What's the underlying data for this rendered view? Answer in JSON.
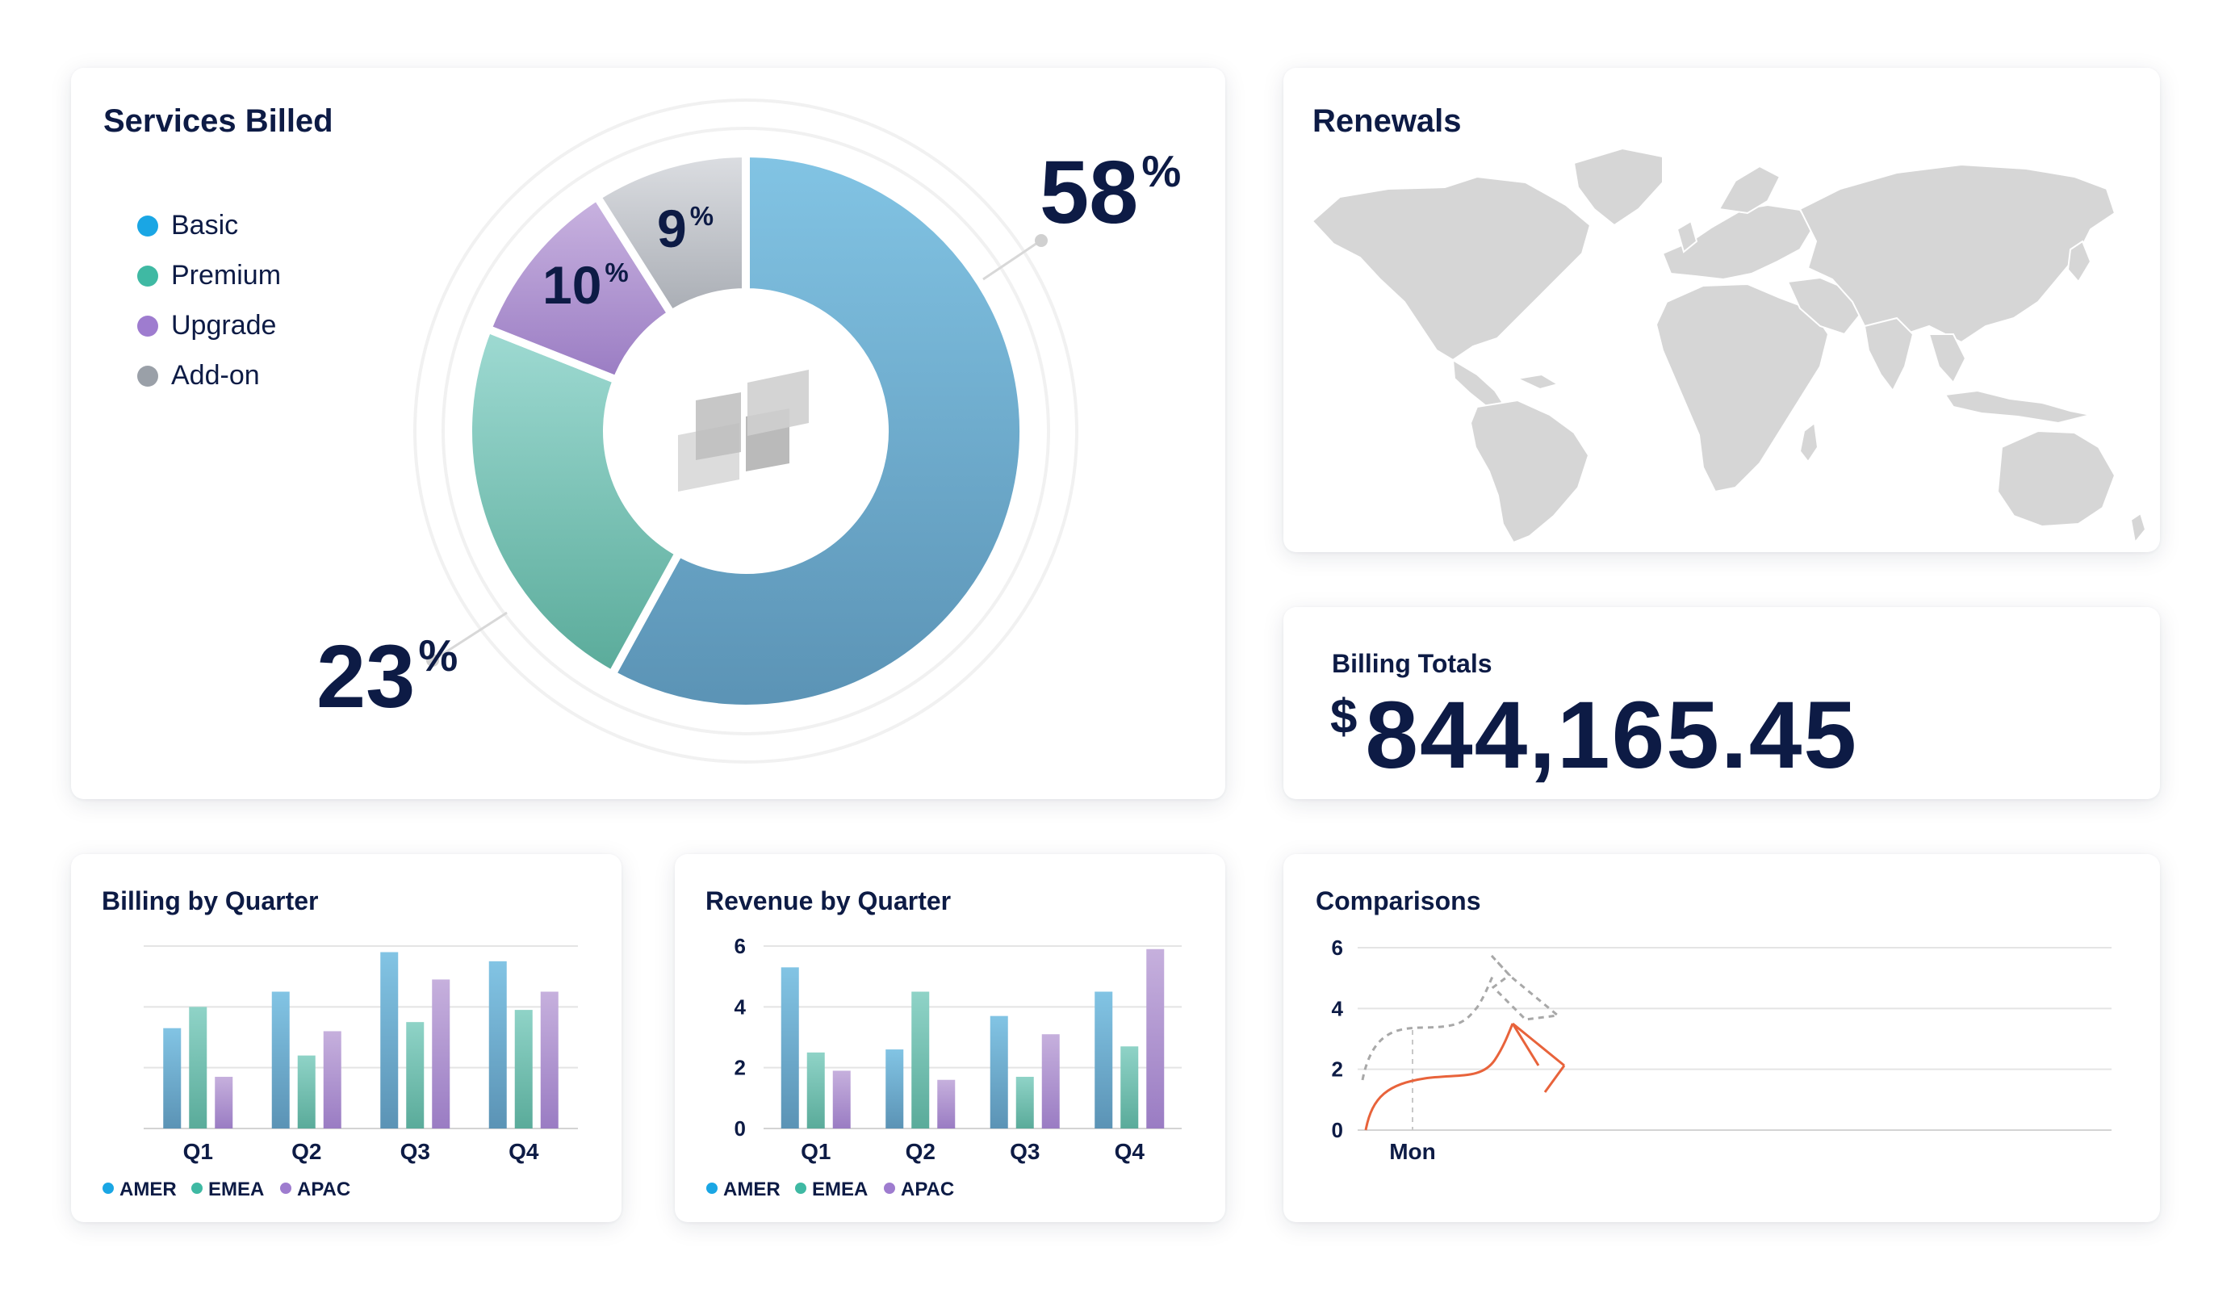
{
  "colors": {
    "basic": "#1aa6e4",
    "premium": "#3fb9a3",
    "upgrade": "#9e7ccf",
    "addon": "#9aa0a8",
    "ink": "#0d1b45",
    "land": "#d6d6d6",
    "comparison_line": "#e8633b"
  },
  "services": {
    "title": "Services Billed",
    "legend": [
      {
        "label": "Basic",
        "color": "#1aa6e4"
      },
      {
        "label": "Premium",
        "color": "#3fb9a3"
      },
      {
        "label": "Upgrade",
        "color": "#9e7ccf"
      },
      {
        "label": "Add-on",
        "color": "#9aa0a8"
      }
    ],
    "center_icon": "logo-icon"
  },
  "renewals": {
    "title": "Renewals",
    "map_icon": "world-map-icon"
  },
  "billing_totals": {
    "label": "Billing Totals",
    "currency": "$",
    "value": "844,165.45"
  },
  "billing_quarter": {
    "title": "Billing by Quarter"
  },
  "revenue_quarter": {
    "title": "Revenue by Quarter"
  },
  "comparisons": {
    "title": "Comparisons"
  },
  "chart_data": [
    {
      "type": "pie",
      "title": "Services Billed",
      "categories": [
        "Basic",
        "Premium",
        "Upgrade",
        "Add-on"
      ],
      "values": [
        58,
        23,
        10,
        9
      ],
      "labels": [
        "58",
        "23",
        "10",
        "9"
      ],
      "unit": "%",
      "legend": "top-left"
    },
    {
      "type": "bar",
      "title": "Billing by Quarter",
      "categories": [
        "Q1",
        "Q2",
        "Q3",
        "Q4"
      ],
      "series": [
        {
          "name": "AMER",
          "values": [
            3.3,
            4.5,
            5.8,
            5.5
          ]
        },
        {
          "name": "EMEA",
          "values": [
            4.0,
            2.4,
            3.5,
            3.9
          ]
        },
        {
          "name": "APAC",
          "values": [
            1.7,
            3.2,
            4.9,
            4.5
          ]
        }
      ],
      "ylim": [
        0,
        6
      ],
      "yticks": [],
      "grid": true,
      "legend": "bottom-left"
    },
    {
      "type": "bar",
      "title": "Revenue by Quarter",
      "categories": [
        "Q1",
        "Q2",
        "Q3",
        "Q4"
      ],
      "series": [
        {
          "name": "AMER",
          "values": [
            5.3,
            2.6,
            3.7,
            4.5
          ]
        },
        {
          "name": "EMEA",
          "values": [
            2.5,
            4.5,
            1.7,
            2.7
          ]
        },
        {
          "name": "APAC",
          "values": [
            1.9,
            1.6,
            3.1,
            5.9
          ]
        }
      ],
      "ylim": [
        0,
        6
      ],
      "yticks": [
        "0",
        "2",
        "4",
        "6"
      ],
      "grid": true,
      "legend": "bottom-left"
    },
    {
      "type": "line",
      "title": "Comparisons",
      "categories": [
        "Mon"
      ],
      "yticks": [
        "0",
        "2",
        "4",
        "6"
      ],
      "ylim": [
        0,
        6
      ],
      "grid": true
    }
  ]
}
